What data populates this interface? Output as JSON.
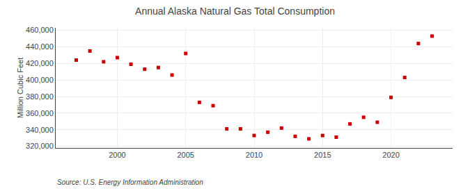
{
  "chart_data": {
    "type": "scatter",
    "title": "Annual Alaska Natural Gas Total Consumption",
    "ylabel": "Million Cubic Feet",
    "annotations": [
      "Source: U.S. Energy Information Administration"
    ],
    "x": [
      1997,
      1998,
      1999,
      2000,
      2001,
      2002,
      2003,
      2004,
      2005,
      2006,
      2007,
      2008,
      2009,
      2010,
      2011,
      2012,
      2013,
      2014,
      2015,
      2016,
      2017,
      2018,
      2019,
      2020,
      2021,
      2022,
      2023
    ],
    "values": [
      424000,
      435000,
      422000,
      427000,
      419000,
      413000,
      415000,
      406000,
      432000,
      373000,
      369000,
      341000,
      341000,
      333000,
      337000,
      342000,
      332000,
      329000,
      333000,
      331000,
      347000,
      355000,
      349000,
      379000,
      403000,
      444000,
      453000
    ],
    "color": "#cc0000",
    "marker": "square",
    "xlim": [
      1995.5,
      2024.5
    ],
    "xticks": [
      2000,
      2005,
      2010,
      2015,
      2020
    ],
    "ylim": [
      318000,
      463000
    ],
    "yticks": [
      {
        "value": 320000,
        "label": "320,000"
      },
      {
        "value": 340000,
        "label": "340,000"
      },
      {
        "value": 360000,
        "label": "360,000"
      },
      {
        "value": 380000,
        "label": "380,000"
      },
      {
        "value": 400000,
        "label": "400,000"
      },
      {
        "value": 420000,
        "label": "420,000"
      },
      {
        "value": 440000,
        "label": "440,000"
      },
      {
        "value": 460000,
        "label": "460,000"
      }
    ],
    "grid": true
  }
}
